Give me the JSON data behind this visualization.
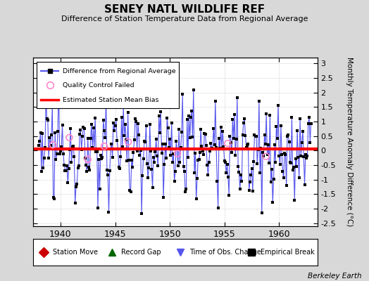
{
  "title": "SENEY NATL WILDLIFE REF",
  "subtitle": "Difference of Station Temperature Data from Regional Average",
  "ylabel": "Monthly Temperature Anomaly Difference (°C)",
  "xlabel_years": [
    1940,
    1945,
    1950,
    1955,
    1960
  ],
  "xlim": [
    1937.5,
    1963.5
  ],
  "ylim": [
    -2.6,
    3.2
  ],
  "yticks": [
    -2.5,
    -2,
    -1.5,
    -1,
    -0.5,
    0,
    0.5,
    1,
    1.5,
    2,
    2.5,
    3
  ],
  "mean_bias": 0.05,
  "line_color": "#5555ee",
  "marker_color": "#000000",
  "bias_color": "#ff0000",
  "qc_color": "#ff88cc",
  "background_color": "#d8d8d8",
  "plot_bg_color": "#ffffff",
  "grid_color": "#cccccc",
  "berkeley_earth_text": "Berkeley Earth",
  "seed": 12345
}
